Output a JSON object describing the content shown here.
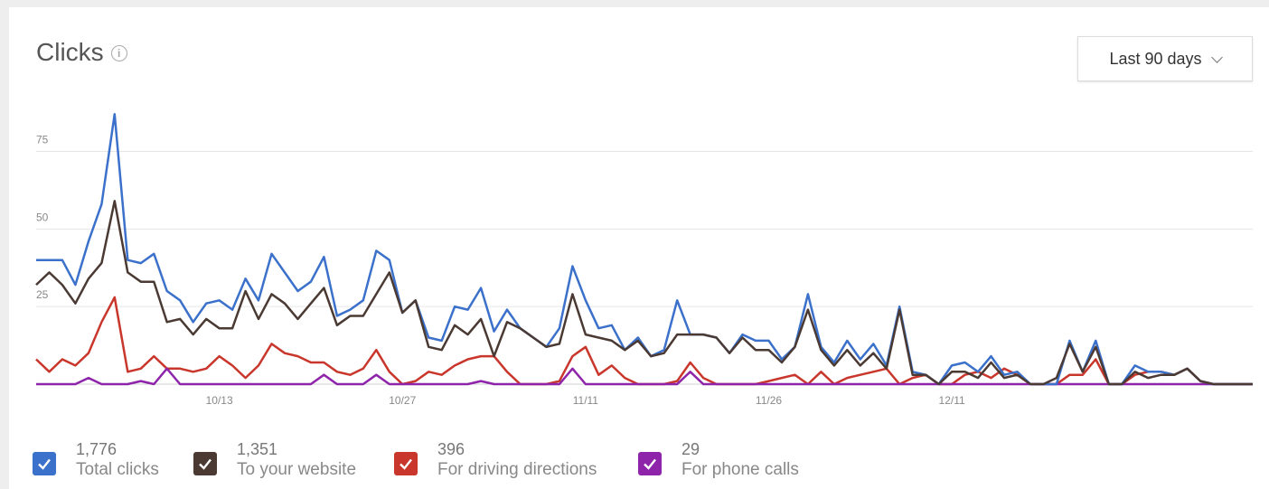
{
  "header": {
    "title": "Clicks",
    "info_icon": "info-icon"
  },
  "range_select": {
    "label": "Last 90 days",
    "icon": "chevron-down-icon"
  },
  "legend": [
    {
      "value": "1,776",
      "label": "Total clicks",
      "color": "#3b71ca"
    },
    {
      "value": "1,351",
      "label": "To your website",
      "color": "#4a3a33"
    },
    {
      "value": "396",
      "label": "For driving directions",
      "color": "#c9362b"
    },
    {
      "value": "29",
      "label": "For phone calls",
      "color": "#8e24aa"
    }
  ],
  "chart_data": {
    "type": "line",
    "title": "Clicks",
    "xlabel": "",
    "ylabel": "",
    "ylim": [
      0,
      90
    ],
    "yticks": [
      25,
      50,
      75
    ],
    "xtick_labels": [
      "10/13",
      "10/27",
      "11/11",
      "11/26",
      "12/11"
    ],
    "xtick_days": [
      14,
      28,
      42,
      56,
      70
    ],
    "grid": true,
    "series": [
      {
        "name": "Total clicks",
        "color": "#3b71ca",
        "values": [
          40,
          40,
          40,
          32,
          46,
          58,
          87,
          40,
          39,
          42,
          30,
          27,
          20,
          26,
          27,
          24,
          34,
          27,
          42,
          36,
          30,
          33,
          41,
          22,
          24,
          27,
          43,
          40,
          23,
          27,
          15,
          14,
          25,
          24,
          31,
          17,
          24,
          18,
          15,
          12,
          18,
          38,
          27,
          18,
          19,
          11,
          15,
          9,
          11,
          27,
          16,
          16,
          15,
          10,
          16,
          14,
          14,
          8,
          12,
          29,
          12,
          7,
          14,
          8,
          13,
          6,
          25,
          4,
          3,
          0,
          6,
          7,
          4,
          9,
          3,
          4,
          0,
          0,
          0,
          14,
          4,
          14,
          0,
          0,
          6,
          4,
          4,
          3,
          5,
          1,
          0,
          0,
          0,
          0
        ]
      },
      {
        "name": "To your website",
        "color": "#4a3a33",
        "values": [
          32,
          36,
          32,
          26,
          34,
          39,
          59,
          36,
          33,
          33,
          20,
          21,
          16,
          21,
          18,
          18,
          30,
          21,
          29,
          26,
          21,
          26,
          31,
          19,
          22,
          22,
          29,
          36,
          23,
          27,
          12,
          11,
          19,
          16,
          21,
          9,
          20,
          18,
          15,
          12,
          13,
          29,
          16,
          15,
          14,
          11,
          14,
          9,
          10,
          16,
          16,
          16,
          15,
          10,
          15,
          11,
          11,
          7,
          12,
          24,
          11,
          6,
          11,
          6,
          10,
          5,
          24,
          3,
          3,
          0,
          4,
          4,
          2,
          7,
          2,
          3,
          0,
          0,
          2,
          13,
          4,
          12,
          0,
          0,
          4,
          2,
          3,
          3,
          5,
          1,
          0,
          0,
          0,
          0
        ]
      },
      {
        "name": "For driving directions",
        "color": "#c9362b",
        "values": [
          8,
          4,
          8,
          6,
          10,
          20,
          28,
          4,
          5,
          9,
          5,
          5,
          4,
          5,
          9,
          6,
          2,
          6,
          13,
          10,
          9,
          7,
          7,
          4,
          3,
          5,
          11,
          4,
          0,
          1,
          4,
          3,
          6,
          8,
          9,
          9,
          4,
          0,
          0,
          0,
          1,
          9,
          12,
          3,
          6,
          2,
          0,
          0,
          0,
          1,
          7,
          2,
          0,
          0,
          0,
          0,
          1,
          2,
          3,
          0,
          4,
          0,
          2,
          3,
          4,
          5,
          0,
          2,
          3,
          0,
          0,
          3,
          4,
          2,
          5,
          3,
          0,
          0,
          0,
          3,
          3,
          8,
          0,
          0,
          3,
          4,
          4,
          3,
          5,
          1,
          0,
          0,
          0,
          0
        ]
      },
      {
        "name": "For phone calls",
        "color": "#8e24aa",
        "values": [
          0,
          0,
          0,
          0,
          2,
          0,
          0,
          0,
          1,
          0,
          5,
          0,
          0,
          0,
          0,
          0,
          0,
          0,
          0,
          0,
          0,
          0,
          3,
          0,
          0,
          0,
          3,
          0,
          0,
          0,
          0,
          0,
          0,
          0,
          1,
          0,
          0,
          0,
          0,
          0,
          0,
          5,
          0,
          0,
          0,
          0,
          0,
          0,
          0,
          0,
          4,
          0,
          0,
          0,
          0,
          0,
          0,
          0,
          0,
          0,
          0,
          0,
          0,
          0,
          0,
          0,
          0,
          0,
          0,
          0,
          0,
          0,
          0,
          0,
          0,
          0,
          0,
          0,
          0,
          0,
          0,
          0,
          0,
          0,
          0,
          0,
          0,
          0,
          0,
          0,
          0,
          0,
          0,
          0
        ]
      }
    ]
  }
}
